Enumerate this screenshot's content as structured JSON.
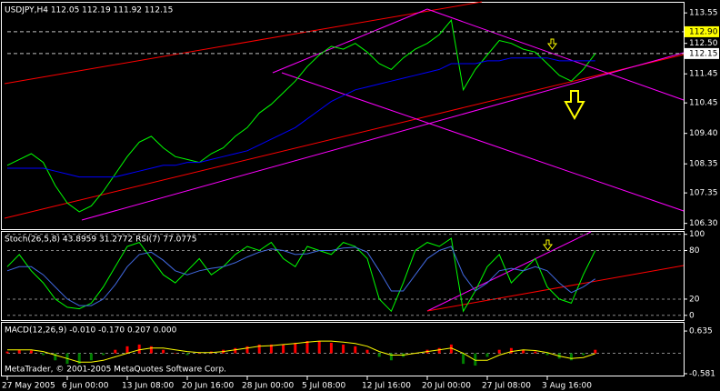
{
  "chart_data": [
    {
      "type": "line",
      "title": "USDJPY,H4 112.05 112.19 111.92 112.15",
      "categories": [
        "27 May 2005",
        null,
        null,
        null,
        null,
        "6 Jun 00:00",
        null,
        null,
        null,
        null,
        "13 Jun 08:00",
        null,
        null,
        null,
        null,
        "20 Jun 16:00",
        null,
        null,
        null,
        null,
        "28 Jun 00:00",
        null,
        null,
        null,
        null,
        "5 Jul 08:00",
        null,
        null,
        null,
        null,
        "12 Jul 16:00",
        null,
        null,
        null,
        null,
        "20 Jul 00:00",
        null,
        null,
        null,
        null,
        "27 Jul 08:00",
        null,
        null,
        null,
        null,
        "3 Aug 16:00",
        null,
        null,
        null,
        null
      ],
      "series": [
        {
          "color": "#00ff00",
          "values": [
            108.3,
            108.5,
            108.7,
            108.4,
            107.6,
            107.0,
            106.7,
            106.9,
            107.4,
            108.0,
            108.6,
            109.1,
            109.3,
            108.9,
            108.6,
            108.5,
            108.4,
            108.7,
            108.9,
            109.3,
            109.6,
            110.1,
            110.4,
            110.8,
            111.2,
            111.7,
            112.1,
            112.4,
            112.3,
            112.5,
            112.2,
            111.8,
            111.6,
            112.0,
            112.3,
            112.5,
            112.8,
            113.3,
            110.9,
            111.6,
            112.1,
            112.6,
            112.5,
            112.3,
            112.2,
            111.8,
            111.4,
            111.2,
            111.6,
            112.15
          ]
        },
        {
          "color": "#0000ff",
          "values": [
            108.2,
            108.2,
            108.2,
            108.2,
            108.1,
            108.0,
            107.9,
            107.9,
            107.9,
            107.9,
            108.0,
            108.1,
            108.2,
            108.3,
            108.3,
            108.4,
            108.4,
            108.5,
            108.6,
            108.7,
            108.8,
            109.0,
            109.2,
            109.4,
            109.6,
            109.9,
            110.2,
            110.5,
            110.7,
            110.9,
            111.0,
            111.1,
            111.2,
            111.3,
            111.4,
            111.5,
            111.6,
            111.8,
            111.8,
            111.8,
            111.9,
            111.9,
            112.0,
            112.0,
            112.0,
            112.0,
            111.9,
            111.9,
            111.9,
            111.9
          ]
        }
      ],
      "ylim": [
        106.07,
        113.9
      ],
      "yticks": [
        113.55,
        {
          "value": 112.5,
          "label": "112.50"
        },
        111.45,
        110.45,
        {
          "value": 109.4,
          "label": "109.40"
        },
        108.35,
        107.35,
        {
          "value": 106.3,
          "label": "106.30"
        }
      ],
      "price_labels": [
        {
          "value": 112.9,
          "label": "112.90",
          "color": "#ffff00"
        },
        {
          "value": 112.15,
          "label": "112.15",
          "color": "#ffffff"
        }
      ]
    },
    {
      "type": "line",
      "title": "Stoch(26,5,8) 43.8959 31.2772 RSI(7) 77.0775",
      "series": [
        {
          "color": "#00ff00",
          "values": [
            60,
            75,
            55,
            40,
            20,
            10,
            8,
            15,
            35,
            60,
            85,
            90,
            70,
            50,
            40,
            55,
            70,
            50,
            60,
            75,
            85,
            80,
            90,
            70,
            60,
            85,
            80,
            75,
            90,
            85,
            70,
            20,
            5,
            40,
            80,
            90,
            85,
            95,
            5,
            30,
            60,
            75,
            40,
            55,
            70,
            35,
            20,
            15,
            50,
            80
          ]
        },
        {
          "color": "#4169e1",
          "values": [
            55,
            60,
            60,
            50,
            35,
            20,
            12,
            12,
            20,
            38,
            60,
            75,
            78,
            68,
            55,
            50,
            55,
            58,
            60,
            65,
            72,
            78,
            82,
            80,
            75,
            76,
            80,
            80,
            83,
            84,
            78,
            55,
            30,
            30,
            50,
            70,
            80,
            85,
            50,
            30,
            40,
            55,
            58,
            55,
            60,
            55,
            40,
            28,
            35,
            45
          ]
        }
      ],
      "ylim": [
        -7,
        103
      ],
      "yticks": [
        100,
        80,
        20,
        0
      ]
    },
    {
      "type": "bar",
      "title": "MACD(12,26,9) -0.010 -0.170 0.207 0.000",
      "annotation": "MetaTrader, © 2001-2005 MetaQuotes Software Corp.",
      "color": "#ff0000",
      "values": [
        0.05,
        0.1,
        0.08,
        -0.05,
        -0.2,
        -0.3,
        -0.3,
        -0.2,
        -0.05,
        0.1,
        0.2,
        0.25,
        0.2,
        0.1,
        0.0,
        -0.05,
        0.0,
        0.05,
        0.1,
        0.15,
        0.2,
        0.25,
        0.25,
        0.25,
        0.3,
        0.35,
        0.35,
        0.3,
        0.25,
        0.2,
        0.1,
        -0.1,
        -0.2,
        -0.1,
        0.0,
        0.1,
        0.15,
        0.25,
        -0.3,
        -0.35,
        -0.1,
        0.1,
        0.15,
        0.1,
        0.05,
        -0.05,
        -0.15,
        -0.2,
        -0.05,
        0.1
      ],
      "series": [
        {
          "color": "#ffff00",
          "values": [
            0.1,
            0.1,
            0.1,
            0.05,
            -0.05,
            -0.15,
            -0.25,
            -0.25,
            -0.2,
            -0.1,
            0.0,
            0.1,
            0.15,
            0.15,
            0.1,
            0.05,
            0.02,
            0.02,
            0.05,
            0.1,
            0.15,
            0.2,
            0.22,
            0.25,
            0.28,
            0.32,
            0.35,
            0.35,
            0.32,
            0.28,
            0.2,
            0.05,
            -0.05,
            -0.05,
            0.0,
            0.05,
            0.1,
            0.15,
            0.0,
            -0.2,
            -0.2,
            -0.05,
            0.05,
            0.1,
            0.08,
            0.02,
            -0.08,
            -0.15,
            -0.12,
            -0.01
          ]
        }
      ],
      "ylim": [
        -0.66,
        0.87
      ],
      "yticks": [
        0.635,
        -0.581
      ]
    }
  ]
}
